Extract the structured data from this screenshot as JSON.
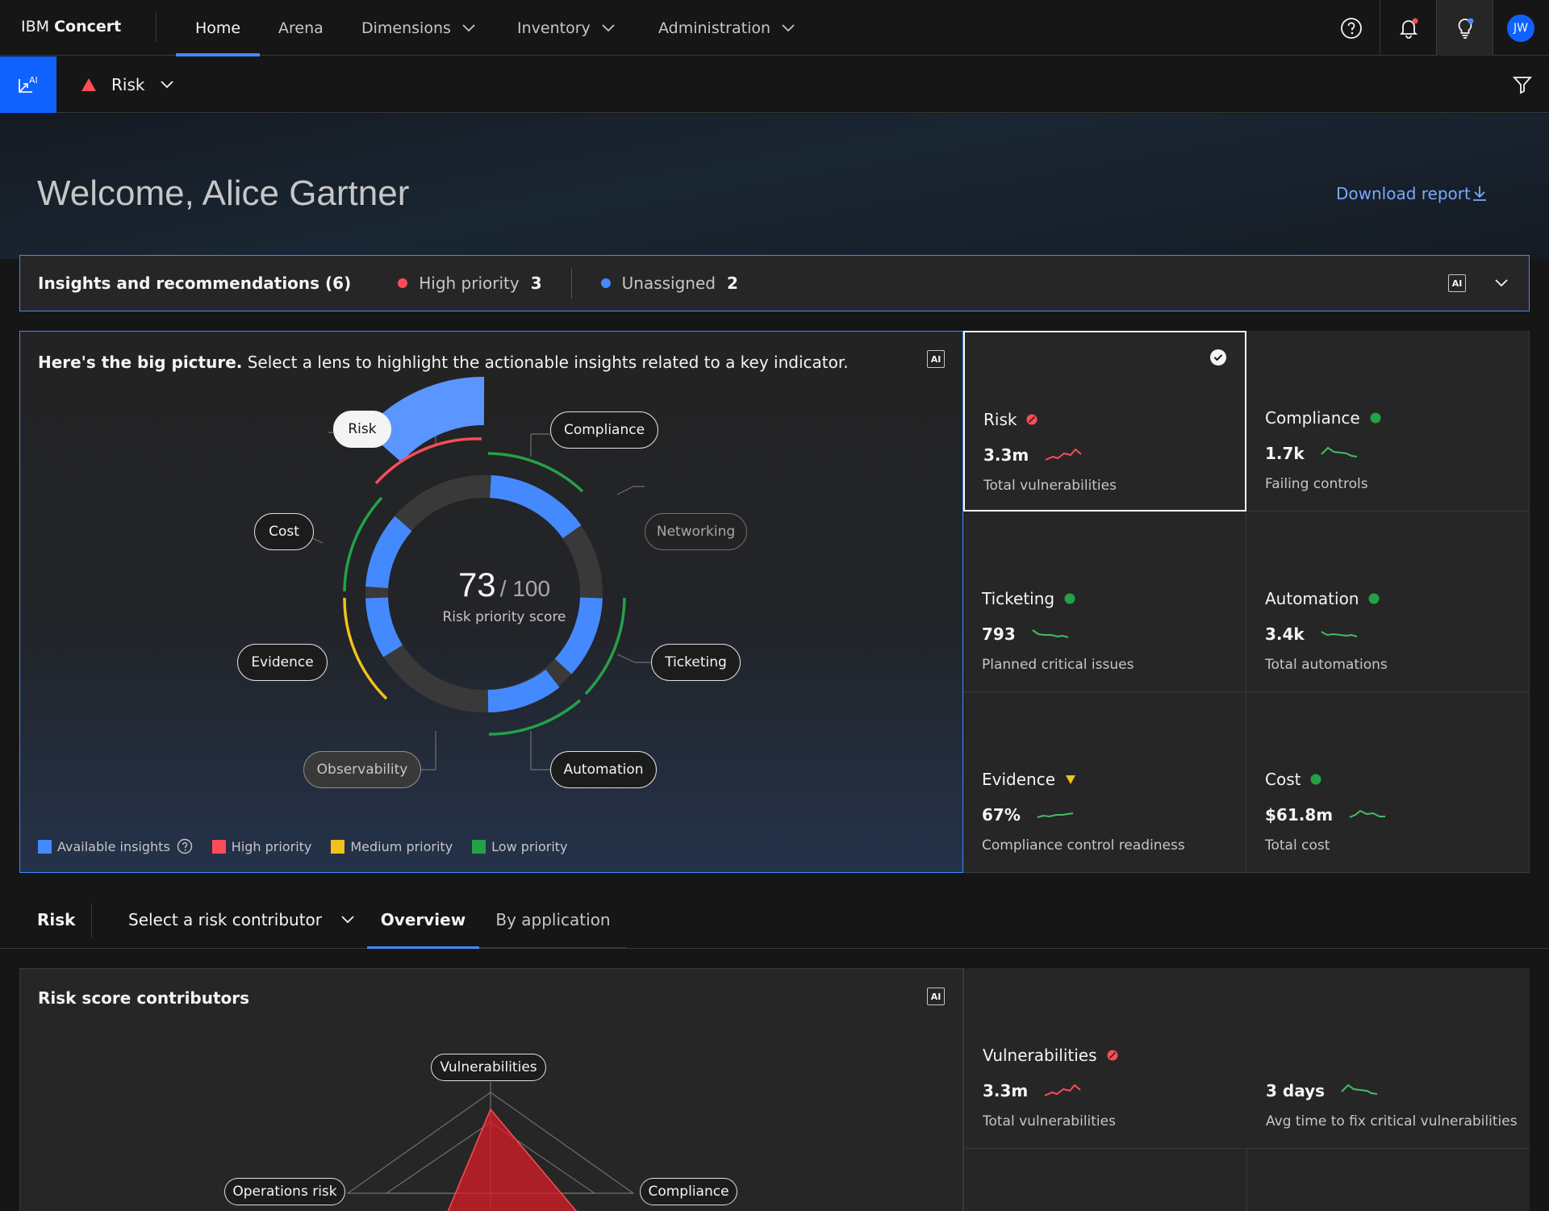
{
  "header": {
    "brand_prefix": "IBM",
    "brand_name": "Concert",
    "nav": [
      {
        "label": "Home",
        "active": true
      },
      {
        "label": "Arena",
        "active": false
      },
      {
        "label": "Dimensions",
        "dropdown": true
      },
      {
        "label": "Inventory",
        "dropdown": true
      },
      {
        "label": "Administration",
        "dropdown": true
      }
    ],
    "icons": [
      "help-icon",
      "notification-icon",
      "idea-icon"
    ],
    "avatar_initials": "JW"
  },
  "subbar": {
    "ai_toggle_label": "AI",
    "lens_label": "Risk",
    "lens_icon": "warning-triangle-icon"
  },
  "welcome": {
    "title": "Welcome, Alice Gartner",
    "download_label": "Download report"
  },
  "insights": {
    "title": "Insights and recommendations (6)",
    "high_priority_label": "High priority",
    "high_priority_count": "3",
    "unassigned_label": "Unassigned",
    "unassigned_count": "2",
    "ai_label": "AI"
  },
  "big_picture": {
    "lead": "Here's the big picture.",
    "text": " Select a lens to highlight the actionable insights related to a key indicator.",
    "ai_label": "AI",
    "score_value": "73",
    "score_max": "/ 100",
    "score_label": "Risk priority score",
    "chips": {
      "risk": "Risk",
      "compliance": "Compliance",
      "networking": "Networking",
      "ticketing": "Ticketing",
      "automation": "Automation",
      "observability": "Observability",
      "evidence": "Evidence",
      "cost": "Cost"
    },
    "legend": {
      "available": "Available insights",
      "high": "High priority",
      "medium": "Medium priority",
      "low": "Low priority"
    },
    "colors": {
      "available": "#4589ff",
      "high": "#fa4d56",
      "medium": "#f1c21b",
      "low": "#24a148"
    }
  },
  "kpis": [
    {
      "name": "Risk",
      "status": "high",
      "value": "3.3m",
      "sub": "Total vulnerabilities",
      "trend": "up",
      "selected": true
    },
    {
      "name": "Compliance",
      "status": "ok",
      "value": "1.7k",
      "sub": "Failing controls",
      "trend": "down"
    },
    {
      "name": "Ticketing",
      "status": "ok",
      "value": "793",
      "sub": "Planned critical issues",
      "trend": "down"
    },
    {
      "name": "Automation",
      "status": "ok",
      "value": "3.4k",
      "sub": "Total automations",
      "trend": "down"
    },
    {
      "name": "Evidence",
      "status": "medium",
      "value": "67%",
      "sub": "Compliance control readiness",
      "trend": "flat"
    },
    {
      "name": "Cost",
      "status": "ok",
      "value": "$61.8m",
      "sub": "Total cost",
      "trend": "down"
    }
  ],
  "risk_section": {
    "title": "Risk",
    "contributor_placeholder": "Select a risk contributor",
    "tabs": [
      {
        "label": "Overview",
        "active": true
      },
      {
        "label": "By application",
        "active": false
      }
    ]
  },
  "contributors": {
    "title": "Risk score contributors",
    "ai_label": "AI",
    "radar_labels": {
      "vulnerabilities": "Vulnerabilities",
      "operations": "Operations risk",
      "compliance": "Compliance"
    }
  },
  "vuln_kpi": {
    "name": "Vulnerabilities",
    "value": "3.3m",
    "sub": "Total vulnerabilities",
    "value2": "3 days",
    "sub2": "Avg time to fix critical vulnerabilities"
  }
}
